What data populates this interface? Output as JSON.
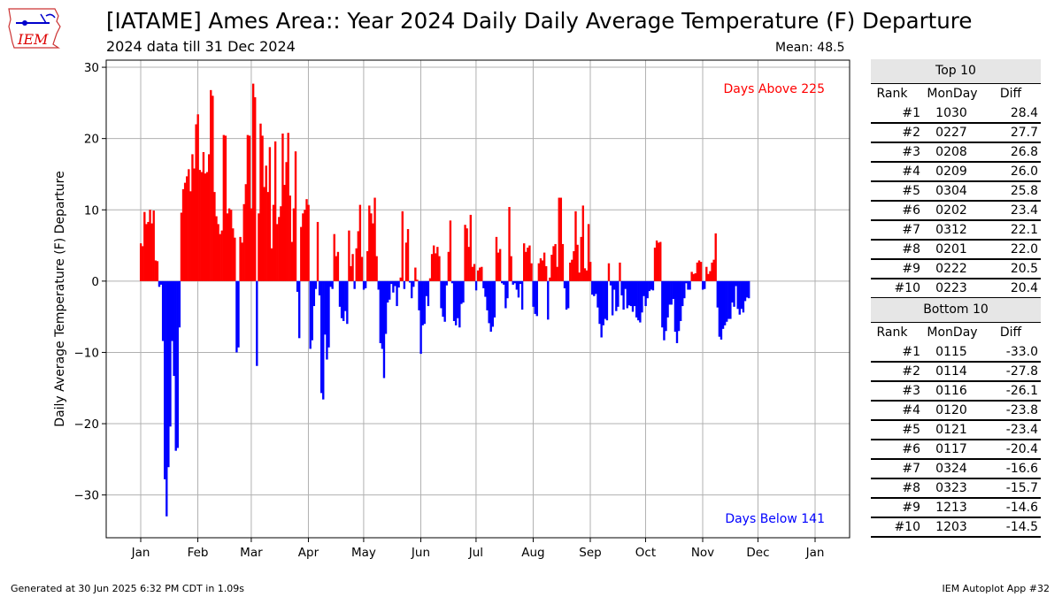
{
  "header": {
    "title": "[IATAME] Ames Area:: Year 2024 Daily Daily Average Temperature (F) Departure",
    "subtitle": "2024 data till 31 Dec 2024",
    "mean_label": "Mean: 48.5",
    "logo_text": "IEM"
  },
  "footer": {
    "generated": "Generated at 30 Jun 2025 6:32 PM CDT in 1.09s",
    "app": "IEM Autoplot App #32"
  },
  "colors": {
    "above": "#ff0000",
    "below": "#0000ff",
    "grid": "#b0b0b0",
    "table_header": "#e6e6e6"
  },
  "chart_data": {
    "type": "bar",
    "title": "[IATAME] Ames Area:: Year 2024 Daily Daily Average Temperature (F) Departure",
    "subtitle": "2024 data till 31 Dec 2024",
    "ylabel": "Daily Average Temperature (F) Departure",
    "xlabel": "",
    "ylim": [
      -36,
      31
    ],
    "yticks": [
      30,
      20,
      10,
      0,
      -10,
      -20,
      -30
    ],
    "ytick_labels": [
      "30",
      "20",
      "10",
      "0",
      "−10",
      "−20",
      "−30"
    ],
    "xticks": [
      {
        "label": "Jan",
        "day": 1
      },
      {
        "label": "Feb",
        "day": 32
      },
      {
        "label": "Mar",
        "day": 61
      },
      {
        "label": "Apr",
        "day": 92
      },
      {
        "label": "May",
        "day": 122
      },
      {
        "label": "Jun",
        "day": 153
      },
      {
        "label": "Jul",
        "day": 183
      },
      {
        "label": "Aug",
        "day": 214
      },
      {
        "label": "Sep",
        "day": 245
      },
      {
        "label": "Oct",
        "day": 275
      },
      {
        "label": "Nov",
        "day": 306
      },
      {
        "label": "Dec",
        "day": 336
      },
      {
        "label": "Jan",
        "day": 367
      }
    ],
    "grid": true,
    "annotations": {
      "above": "Days Above 225",
      "below": "Days Below 141"
    },
    "values": [
      5.3,
      4.9,
      9.7,
      8.0,
      8.3,
      10.0,
      8.1,
      9.9,
      2.9,
      2.8,
      -0.8,
      -0.5,
      -8.4,
      -27.8,
      -33.0,
      -26.1,
      -20.4,
      -8.4,
      -13.3,
      -23.8,
      -23.4,
      -6.5,
      9.6,
      12.9,
      13.8,
      14.7,
      15.7,
      12.6,
      17.8,
      15.8,
      22.0,
      23.4,
      15.6,
      15.3,
      18.1,
      15.1,
      15.3,
      17.8,
      26.8,
      26.0,
      12.5,
      9.1,
      8.0,
      6.6,
      7.1,
      20.5,
      20.4,
      9.5,
      10.2,
      10.0,
      7.4,
      6.1,
      -10.0,
      -9.3,
      6.2,
      5.4,
      10.8,
      13.6,
      20.5,
      20.4,
      10.2,
      27.7,
      25.8,
      -11.9,
      9.5,
      22.1,
      20.4,
      13.2,
      16.2,
      12.5,
      18.8,
      4.6,
      10.7,
      19.6,
      8.0,
      9.0,
      10.5,
      20.7,
      13.5,
      16.7,
      20.8,
      12.0,
      5.5,
      10.2,
      18.2,
      -1.5,
      -8.0,
      7.6,
      9.5,
      10.0,
      11.5,
      10.7,
      -9.5,
      -8.3,
      -3.5,
      -1.1,
      8.3,
      -2.0,
      -15.7,
      -16.6,
      -7.5,
      -11.0,
      -9.3,
      -0.8,
      -1.1,
      6.6,
      3.5,
      4.1,
      -3.6,
      -5.2,
      -5.6,
      -4.2,
      -6.0,
      7.1,
      2.1,
      3.8,
      -1.1,
      4.6,
      7.0,
      10.7,
      3.4,
      -1.2,
      -1.0,
      4.2,
      10.6,
      9.5,
      8.1,
      11.7,
      3.5,
      -1.2,
      -8.7,
      -9.5,
      -13.6,
      -7.4,
      -3.0,
      -2.6,
      -0.4,
      -1.6,
      -0.7,
      -3.5,
      -0.9,
      0.5,
      9.8,
      -1.1,
      5.4,
      7.3,
      -0.2,
      -2.4,
      -0.8,
      1.9,
      0.2,
      -4.1,
      -10.2,
      -6.2,
      -6.0,
      -2.1,
      -3.5,
      0.4,
      3.8,
      5.0,
      3.9,
      4.8,
      3.5,
      -3.8,
      -5.0,
      -5.7,
      -0.6,
      4.1,
      8.5,
      -0.3,
      -5.6,
      -6.2,
      -5.2,
      -6.5,
      -3.2,
      -3.0,
      7.9,
      7.4,
      4.8,
      9.3,
      2.0,
      2.4,
      -1.3,
      1.5,
      1.9,
      2.0,
      -1.0,
      -2.2,
      -4.1,
      -5.9,
      -7.1,
      -6.4,
      -5.1,
      6.2,
      4.0,
      4.5,
      -0.3,
      -0.5,
      -3.8,
      -2.4,
      10.4,
      3.5,
      -0.5,
      -0.3,
      -1.2,
      -2.3,
      -0.4,
      -4.0,
      5.3,
      4.1,
      4.7,
      5.0,
      2.5,
      -3.6,
      -4.6,
      -4.9,
      2.5,
      3.2,
      2.9,
      4.0,
      2.1,
      -5.4,
      0.5,
      3.7,
      4.9,
      5.2,
      2.0,
      11.7,
      11.7,
      5.2,
      -1.0,
      -4.0,
      -3.8,
      2.6,
      3.0,
      4.2,
      9.8,
      5.1,
      1.2,
      6.2,
      10.6,
      1.8,
      1.5,
      8.0,
      2.7,
      -1.9,
      -2.1,
      -1.8,
      -3.7,
      -6.0,
      -7.9,
      -6.2,
      -5.3,
      -5.5,
      2.5,
      -0.6,
      -4.8,
      -1.2,
      -4.2,
      -3.6,
      2.6,
      -2.0,
      -4.0,
      -1.1,
      -3.8,
      -3.4,
      -3.5,
      -4.3,
      -3.5,
      -5.1,
      -5.5,
      -5.8,
      -4.4,
      -2.1,
      -3.5,
      -2.4,
      -1.4,
      -1.2,
      -1.3,
      4.7,
      5.7,
      5.4,
      5.5,
      -6.5,
      -8.3,
      -7.0,
      -5.1,
      -3.3,
      -3.3,
      -2.5,
      -7.1,
      -8.7,
      -7.0,
      -5.6,
      -3.5,
      -2.4,
      -0.3,
      -1.2,
      -1.2,
      1.3,
      1.0,
      1.1,
      2.6,
      2.9,
      2.7,
      -1.2,
      -1.1,
      2.0,
      1.0,
      1.4,
      2.6,
      3.0,
      6.7,
      -3.7,
      -7.8,
      -8.2,
      -6.7,
      -6.2,
      -5.7,
      -5.3,
      -5.3,
      -3.0,
      -3.6,
      -0.7,
      -3.9,
      -4.7,
      -3.9,
      -4.4,
      -2.8,
      -2.3,
      -2.4
    ]
  },
  "top10": {
    "title": "Top 10",
    "headers": [
      "Rank",
      "MonDay",
      "Diff"
    ],
    "rows": [
      [
        "#1",
        "1030",
        "28.4"
      ],
      [
        "#2",
        "0227",
        "27.7"
      ],
      [
        "#3",
        "0208",
        "26.8"
      ],
      [
        "#4",
        "0209",
        "26.0"
      ],
      [
        "#5",
        "0304",
        "25.8"
      ],
      [
        "#6",
        "0202",
        "23.4"
      ],
      [
        "#7",
        "0312",
        "22.1"
      ],
      [
        "#8",
        "0201",
        "22.0"
      ],
      [
        "#9",
        "0222",
        "20.5"
      ],
      [
        "#10",
        "0223",
        "20.4"
      ]
    ]
  },
  "bottom10": {
    "title": "Bottom 10",
    "headers": [
      "Rank",
      "MonDay",
      "Diff"
    ],
    "rows": [
      [
        "#1",
        "0115",
        "-33.0"
      ],
      [
        "#2",
        "0114",
        "-27.8"
      ],
      [
        "#3",
        "0116",
        "-26.1"
      ],
      [
        "#4",
        "0120",
        "-23.8"
      ],
      [
        "#5",
        "0121",
        "-23.4"
      ],
      [
        "#6",
        "0117",
        "-20.4"
      ],
      [
        "#7",
        "0324",
        "-16.6"
      ],
      [
        "#8",
        "0323",
        "-15.7"
      ],
      [
        "#9",
        "1213",
        "-14.6"
      ],
      [
        "#10",
        "1203",
        "-14.5"
      ]
    ]
  }
}
